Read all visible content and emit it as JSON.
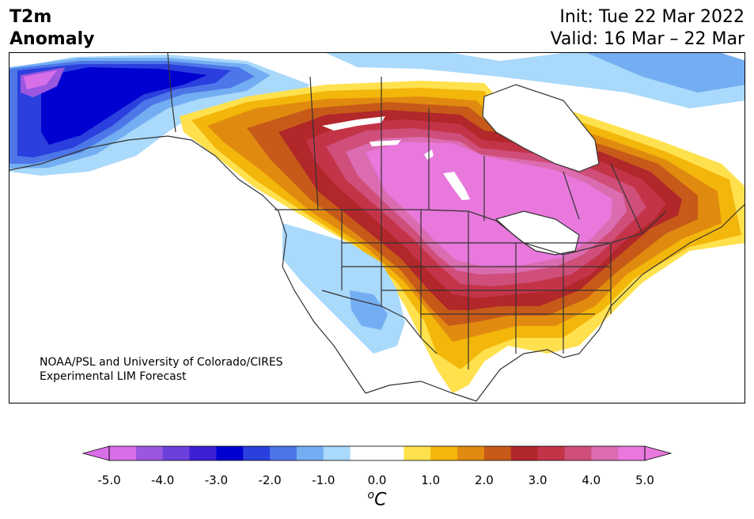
{
  "header": {
    "title_line1": "T2m",
    "title_line2": "Anomaly",
    "init": "Init: Tue 22 Mar 2022",
    "valid": "Valid: 16 Mar – 22 Mar"
  },
  "credit": {
    "line1": "NOAA/PSL and University of Colorado/CIRES",
    "line2": "Experimental LIM Forecast"
  },
  "colorbar": {
    "tick_labels": [
      "-5.0",
      "-4.0",
      "-3.0",
      "-2.0",
      "-1.0",
      "0.0",
      "1.0",
      "2.0",
      "3.0",
      "4.0",
      "5.0"
    ],
    "unit_sup": "o",
    "unit": "C",
    "colors": [
      "#d96fe8",
      "#9b57e0",
      "#6a3fdb",
      "#3d1fd4",
      "#0000d0",
      "#2a3fdd",
      "#4d76e8",
      "#74aef2",
      "#a9d9fb",
      "#ffffff",
      "#ffffff",
      "#ffe14e",
      "#f3b60a",
      "#e08b10",
      "#c75a18",
      "#b1272a",
      "#c33448",
      "#cf4e7a",
      "#dc6cb0",
      "#e878dc"
    ]
  },
  "map": {
    "palette": {
      "ocean": "#ffffff",
      "border": "#333333",
      "warm1": "#ffe14e",
      "warm2": "#f3b60a",
      "warm3": "#e08b10",
      "warm4": "#c75a18",
      "warm5": "#b1272a",
      "warm6": "#c33448",
      "warm7": "#cf4e7a",
      "warm8": "#dc6cb0",
      "warm9": "#e878dc",
      "cool1": "#a9d9fb",
      "cool2": "#74aef2",
      "cool3": "#4d76e8",
      "cool4": "#2a3fdd",
      "cool5": "#0000d0",
      "cool6": "#3d1fd4",
      "cool7": "#6a3fdb",
      "cool8": "#9b57e0",
      "cool9": "#d96fe8"
    }
  }
}
